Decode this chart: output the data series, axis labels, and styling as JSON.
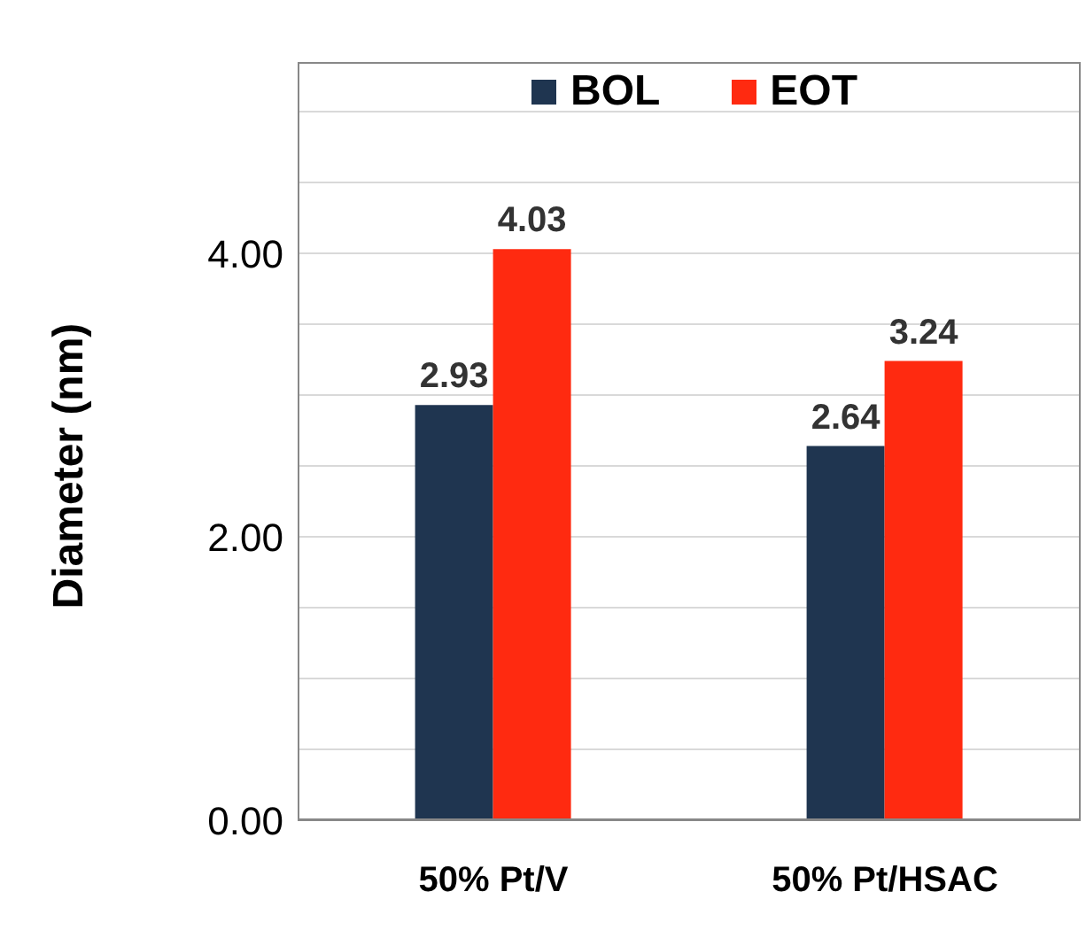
{
  "chart_data": {
    "type": "bar",
    "ylabel": "Diameter (nm)",
    "categories": [
      "50% Pt/V",
      "50% Pt/HSAC"
    ],
    "series": [
      {
        "name": "BOL",
        "color": "#1f3550",
        "values": [
          2.93,
          2.64
        ]
      },
      {
        "name": "EOT",
        "color": "#ff2a10",
        "values": [
          4.03,
          3.24
        ]
      }
    ],
    "ylim": [
      0,
      5
    ],
    "yticks": [
      {
        "value": 0,
        "label": "0.00"
      },
      {
        "value": 0.5,
        "label": null
      },
      {
        "value": 1,
        "label": null
      },
      {
        "value": 1.5,
        "label": null
      },
      {
        "value": 2,
        "label": "2.00"
      },
      {
        "value": 2.5,
        "label": null
      },
      {
        "value": 3,
        "label": null
      },
      {
        "value": 3.5,
        "label": null
      },
      {
        "value": 4,
        "label": "4.00"
      },
      {
        "value": 4.5,
        "label": null
      },
      {
        "value": 5,
        "label": null
      }
    ],
    "grid": "y",
    "legend": "top",
    "data_labels": true
  }
}
